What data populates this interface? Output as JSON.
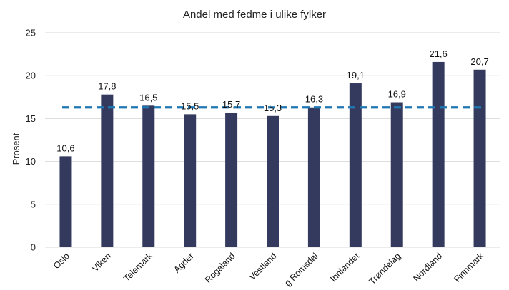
{
  "chart_data": {
    "type": "bar",
    "title": "Andel med fedme i ulike fylker",
    "xlabel": "",
    "ylabel": "Prosent",
    "ylim": [
      0,
      25
    ],
    "yticks": [
      0,
      5,
      10,
      15,
      20,
      25
    ],
    "grid": true,
    "categories": [
      "Oslo",
      "Viken",
      "Vestfold og Telemark",
      "Agder",
      "Rogaland",
      "Vestland",
      "Møre og Romsdal",
      "Innlandet",
      "Trøndelag",
      "Nordland",
      "Troms og Finnmark"
    ],
    "category_labels_visible": [
      "Oslo",
      "Viken",
      "Telemark",
      "Agder",
      "Rogaland",
      "Vestland",
      "g Romsdal",
      "Innlandet",
      "Trøndelag",
      "Nordland",
      "Finnmark"
    ],
    "values": [
      10.6,
      17.8,
      16.5,
      15.5,
      15.7,
      15.3,
      16.3,
      19.1,
      16.9,
      21.6,
      20.7
    ],
    "value_labels": [
      "10,6",
      "17,8",
      "16,5",
      "15,5",
      "15,7",
      "15,3",
      "16,3",
      "19,1",
      "16,9",
      "21,6",
      "20,7"
    ],
    "reference_line": {
      "value": 16.3,
      "style": "dashed"
    },
    "colors": {
      "bar": "#343a5e",
      "reference_line": "#1f78b4",
      "grid": "#d9d9d9"
    }
  }
}
